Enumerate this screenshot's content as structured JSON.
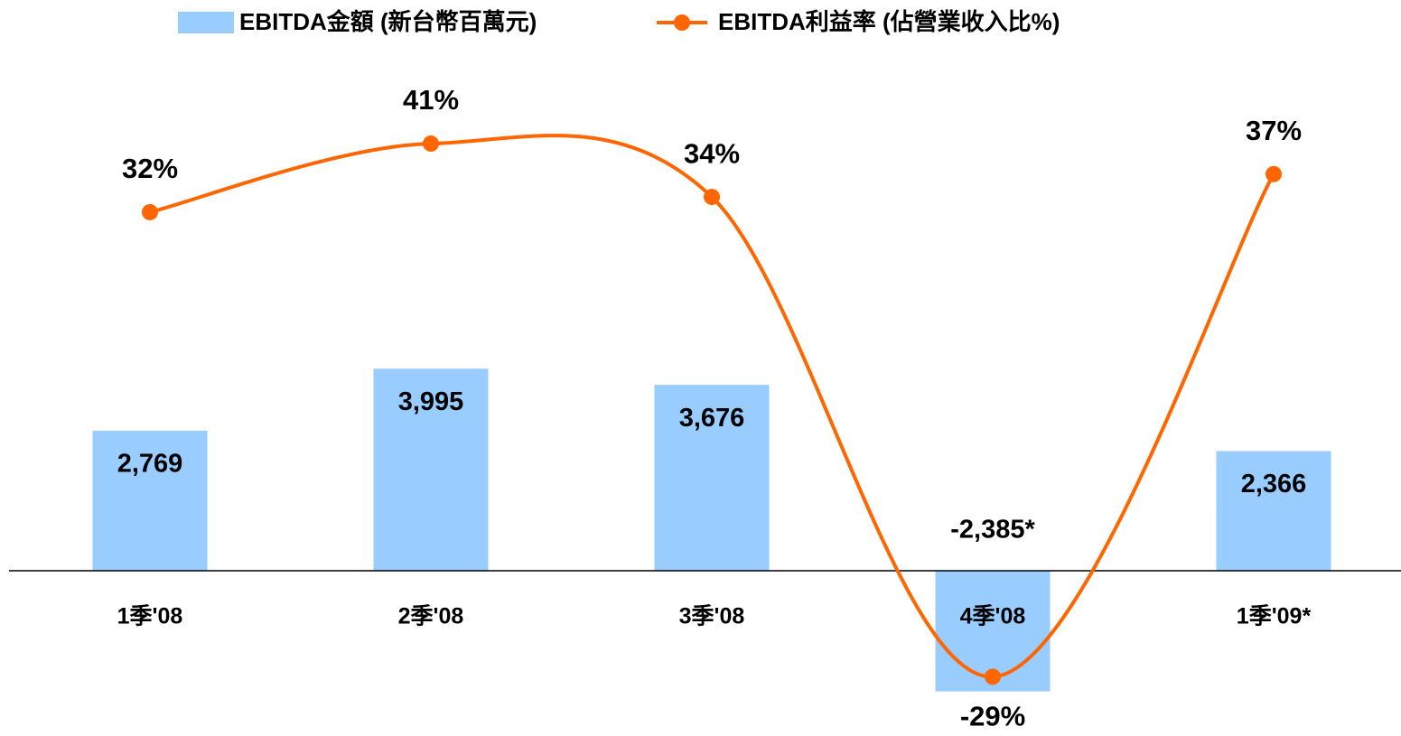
{
  "chart_data": {
    "type": "bar_line",
    "categories": [
      "1季'08",
      "2季'08",
      "3季'08",
      "4季'08",
      "1季'09*"
    ],
    "series": [
      {
        "name": "EBITDA金額 (新台幣百萬元)",
        "type": "bar",
        "color": "#99ccff",
        "values": [
          2769,
          3995,
          3676,
          -2385,
          2366
        ],
        "value_labels": [
          "2,769",
          "3,995",
          "3,676",
          "-2,385*",
          "2,366"
        ],
        "negative_label_color": "#1a1adc"
      },
      {
        "name": "EBITDA利益率 (佔營業收入比%)",
        "type": "line",
        "axis": "y2",
        "color": "#ff6600",
        "values": [
          32,
          41,
          34,
          -29,
          37
        ],
        "value_labels": [
          "32%",
          "41%",
          "34%",
          "-29%",
          "37%"
        ]
      }
    ],
    "ylim": [
      -3000,
      9500
    ],
    "y2lim": [
      -35,
      48
    ],
    "legend": "top"
  }
}
